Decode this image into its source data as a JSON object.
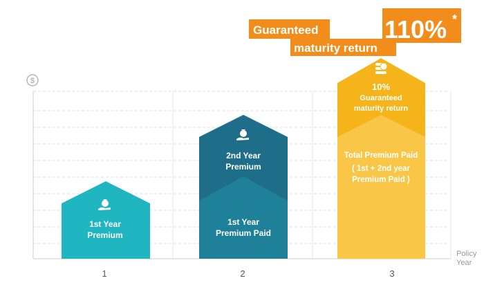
{
  "colors": {
    "teal": "#1fb6c1",
    "dark_teal": "#1e6e89",
    "mid_teal": "#1f8199",
    "gold": "#f6b41b",
    "light_gold": "#f9c648",
    "orange_banner": "#f28c1b",
    "grid": "#dddddd"
  },
  "banner": {
    "line1": "Guaranteed",
    "line2": "maturity return",
    "percent": "110%",
    "asterisk": "*"
  },
  "axis": {
    "y_icon": "dollar-circle-icon",
    "x_label_line1": "Policy",
    "x_label_line2": "Year"
  },
  "chart_data": {
    "type": "bar",
    "title": "",
    "xlabel": "Policy Year",
    "ylabel": "",
    "categories": [
      "1",
      "2",
      "3"
    ],
    "grid": true,
    "bars": [
      {
        "category": "1",
        "segments": [
          {
            "lines": [
              "1st Year",
              "Premium"
            ],
            "icon": "money-bag-hand-icon",
            "color": "#1fb6c1"
          }
        ]
      },
      {
        "category": "2",
        "segments": [
          {
            "lines": [
              "1st Year",
              "Premium Paid"
            ],
            "icon": "",
            "color": "#1f8199"
          },
          {
            "lines": [
              "2nd Year",
              "Premium"
            ],
            "icon": "money-bag-hand-icon",
            "color": "#1e6e89"
          }
        ]
      },
      {
        "category": "3",
        "segments": [
          {
            "lines": [
              "Total Premium Paid",
              "( 1st  + 2nd year",
              "Premium Paid )"
            ],
            "icon": "",
            "color": "#f9c648"
          },
          {
            "lines": [
              "10%",
              "Guaranteed",
              "maturity return"
            ],
            "icon": "coin-stack-icon",
            "color": "#f6b41b"
          }
        ]
      }
    ]
  }
}
